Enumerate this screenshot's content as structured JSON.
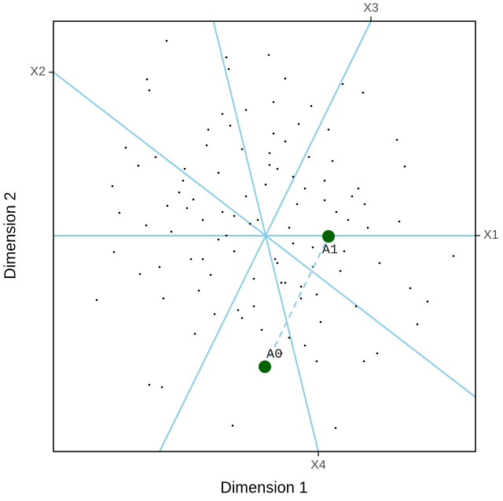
{
  "chart_data": {
    "type": "biplot",
    "xlabel": "Dimension 1",
    "ylabel": "Dimension 2",
    "xlim": [
      -2.7,
      2.67
    ],
    "ylim": [
      -2.75,
      2.73
    ],
    "point_color": "#000000",
    "axis_color": "#87ceeb",
    "anchor_color": "#006400",
    "biplot_axes": [
      {
        "label": "X1",
        "x": 2.67,
        "y": 0
      },
      {
        "label": "X2",
        "x": -2.7,
        "y": 2.08
      },
      {
        "label": "X3",
        "x": 1.34,
        "y": 2.73
      },
      {
        "label": "X4",
        "x": 0.67,
        "y": -2.75
      }
    ],
    "anchors": [
      {
        "label": "A0",
        "x": -0.01,
        "y": -1.67
      },
      {
        "label": "A1",
        "x": 0.8,
        "y": -0.01
      }
    ],
    "x": [
      -1.26,
      -0.5,
      0.04,
      -1.51,
      -1.48,
      -0.47,
      0.25,
      1.24,
      0.98,
      -1.78,
      -1.62,
      -1.95,
      -1.86,
      -1.52,
      -1.93,
      -2.15,
      -1.6,
      -1.3,
      -1.48,
      -1.32,
      -0.42,
      0.89,
      1.25,
      1.42,
      1.93,
      1.84,
      2.06,
      2.39,
      1.7,
      1.26,
      1.18,
      1.77,
      1.67,
      0.58,
      0.42,
      -0.73,
      -1.03,
      -0.92,
      -1.25,
      -0.1,
      0.12,
      -0.25,
      0.3,
      -0.4,
      0.5,
      -0.55,
      0.2,
      -0.15,
      0.05,
      0.35,
      -0.3,
      0.6,
      -0.7,
      0.75,
      -0.8,
      0.1,
      -0.05,
      0.45,
      -0.6,
      0.9,
      -0.95,
      0.15,
      -0.2,
      0.65,
      -0.45,
      0.25,
      -0.35,
      1.0,
      -1.1,
      0.55,
      -0.65,
      0.85,
      -0.85,
      0.4,
      -0.5,
      1.1,
      -1.2,
      0.3,
      -0.25,
      0.7,
      0.0,
      -0.75,
      0.95,
      -1.0,
      0.2,
      0.5,
      -0.15,
      1.3,
      -1.35,
      0.8,
      -0.55,
      0.35,
      0.6,
      -0.9,
      1.15,
      -0.4,
      0.1,
      -0.6,
      0.75,
      -1.05,
      0.45,
      -0.3,
      0.15,
      1.45,
      -1.4,
      0.05,
      0.65,
      -0.8,
      0.25,
      1.05
    ],
    "y": [
      2.48,
      2.27,
      2.3,
      1.99,
      1.85,
      2.12,
      2.0,
      1.82,
      1.93,
      1.12,
      0.89,
      0.63,
      0.29,
      0.13,
      -0.21,
      -0.82,
      -0.49,
      -0.8,
      -1.9,
      -1.93,
      -2.42,
      -2.45,
      -1.6,
      -1.5,
      -1.13,
      -0.67,
      -0.84,
      -0.26,
      0.18,
      0.4,
      0.6,
      0.88,
      1.22,
      1.65,
      1.42,
      1.35,
      0.85,
      0.46,
      0.38,
      0.2,
      -0.3,
      0.5,
      0.1,
      -0.2,
      0.6,
      0.3,
      -0.6,
      -0.9,
      0.9,
      -0.1,
      1.1,
      -0.4,
      -0.5,
      0.7,
      0.2,
      1.3,
      -1.2,
      -0.8,
      0.8,
      0.3,
      -0.3,
      -0.35,
      0.15,
      -0.75,
      1.4,
      1.2,
      -0.95,
      -0.2,
      0.55,
      1.0,
      -1.0,
      0.95,
      -0.7,
      0.4,
      0.0,
      0.5,
      0.05,
      -1.3,
      1.6,
      -1.1,
      0.65,
      1.15,
      -0.45,
      0.35,
      -1.5,
      -1.4,
      -0.55,
      0.1,
      -0.4,
      1.35,
      1.55,
      0.75,
      -0.15,
      -1.25,
      -0.9,
      0.25,
      1.7,
      -0.05,
      0.45,
      0.7,
      -0.65,
      -1.05,
      0.85,
      -0.35,
      1.0,
      1.05,
      -1.6,
      -0.3,
      -0.6,
      0.2
    ]
  }
}
